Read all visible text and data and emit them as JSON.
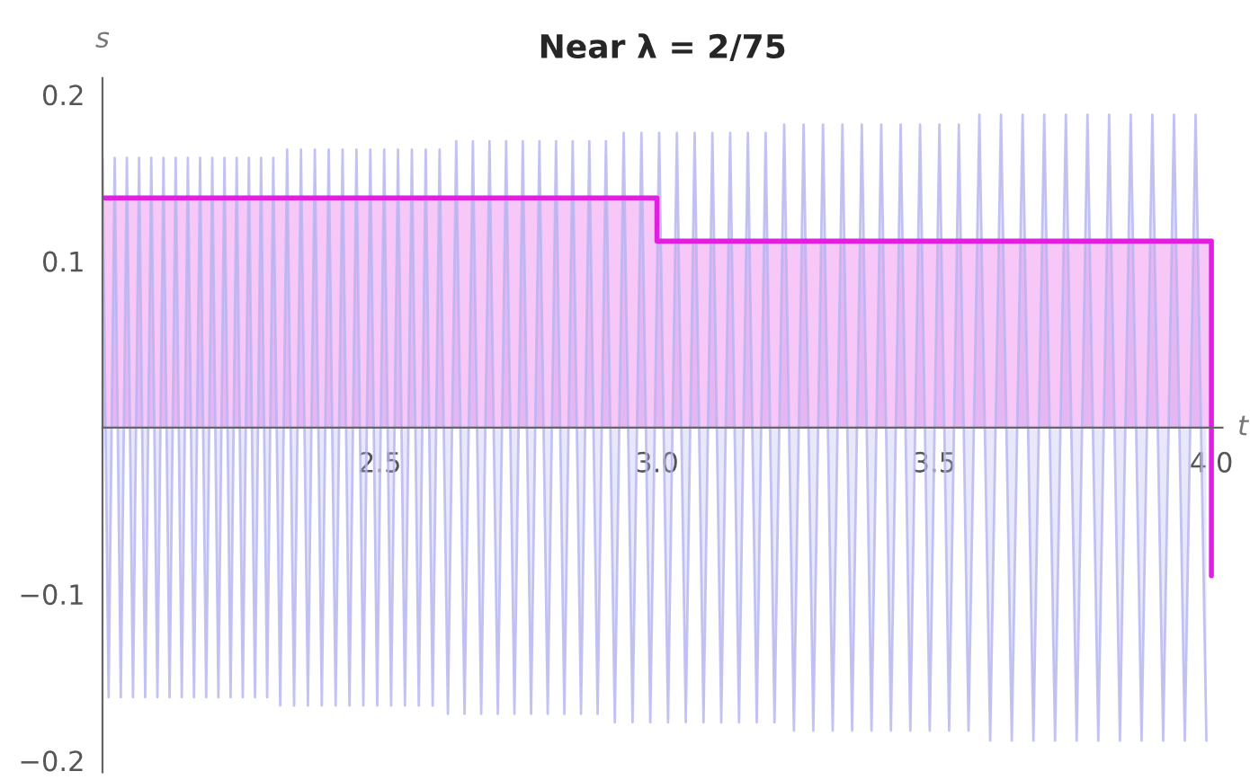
{
  "chart_data": {
    "type": "area",
    "title": "Near λ = 2/75",
    "xlabel": "t",
    "ylabel": "s",
    "xlim": [
      2.0,
      4.02
    ],
    "ylim": [
      -0.207,
      0.21
    ],
    "xticks": [
      2.5,
      {
        "value": 3,
        "label": "3.0"
      },
      3.5,
      {
        "value": 4,
        "label": "4.0"
      }
    ],
    "yticks": [
      {
        "value": -0.2,
        "label": "−0.2"
      },
      {
        "value": -0.1,
        "label": "−0.1"
      },
      0.1,
      0.2
    ],
    "grid": false,
    "series": [
      {
        "color": "#b4b4f0",
        "x": [
          2.0,
          2.011,
          2.022,
          2.033,
          2.044,
          2.055,
          2.066,
          2.077,
          2.088,
          2.099,
          2.11,
          2.121,
          2.132,
          2.143,
          2.154,
          2.165,
          2.176,
          2.187,
          2.198,
          2.209,
          2.22,
          2.231,
          2.242,
          2.253,
          2.264,
          2.275,
          2.286,
          2.297,
          2.308,
          2.3205,
          2.333,
          2.3455,
          2.358,
          2.3705,
          2.383,
          2.3955,
          2.408,
          2.4205,
          2.433,
          2.4455,
          2.458,
          2.4705,
          2.483,
          2.4955,
          2.508,
          2.5205,
          2.533,
          2.5455,
          2.558,
          2.5705,
          2.583,
          2.5955,
          2.608,
          2.623,
          2.638,
          2.653,
          2.668,
          2.683,
          2.698,
          2.713,
          2.728,
          2.743,
          2.758,
          2.773,
          2.788,
          2.803,
          2.818,
          2.833,
          2.848,
          2.863,
          2.878,
          2.893,
          2.908,
          2.924,
          2.94,
          2.956,
          2.972,
          2.988,
          3.004,
          3.02,
          3.036,
          3.052,
          3.068,
          3.084,
          3.1,
          3.116,
          3.132,
          3.148,
          3.164,
          3.18,
          3.196,
          3.212,
          3.2295,
          3.247,
          3.2645,
          3.282,
          3.2995,
          3.317,
          3.3345,
          3.352,
          3.3695,
          3.387,
          3.4045,
          3.422,
          3.4395,
          3.457,
          3.4745,
          3.492,
          3.5095,
          3.527,
          3.5445,
          3.562,
          3.5815,
          3.601,
          3.6205,
          3.64,
          3.6595,
          3.679,
          3.6985,
          3.718,
          3.7375,
          3.757,
          3.7765,
          3.796,
          3.8155,
          3.835,
          3.8545,
          3.874,
          3.8935,
          3.913,
          3.9325,
          3.952,
          3.9715,
          3.991
        ],
        "values": [
          0.162,
          -0.162,
          0.162,
          -0.162,
          0.162,
          -0.162,
          0.162,
          -0.162,
          0.162,
          -0.162,
          0.162,
          -0.162,
          0.162,
          -0.162,
          0.162,
          -0.162,
          0.162,
          -0.162,
          0.162,
          -0.162,
          0.162,
          -0.162,
          0.162,
          -0.162,
          0.162,
          -0.162,
          0.162,
          -0.162,
          0.162,
          -0.167,
          0.167,
          -0.167,
          0.167,
          -0.167,
          0.167,
          -0.167,
          0.167,
          -0.167,
          0.167,
          -0.167,
          0.167,
          -0.167,
          0.167,
          -0.167,
          0.167,
          -0.167,
          0.167,
          -0.167,
          0.167,
          -0.167,
          0.167,
          -0.167,
          0.167,
          -0.172,
          0.172,
          -0.172,
          0.172,
          -0.172,
          0.172,
          -0.172,
          0.172,
          -0.172,
          0.172,
          -0.172,
          0.172,
          -0.172,
          0.172,
          -0.172,
          0.172,
          -0.172,
          0.172,
          -0.172,
          0.172,
          -0.177,
          0.177,
          -0.177,
          0.177,
          -0.177,
          0.177,
          -0.177,
          0.177,
          -0.177,
          0.177,
          -0.177,
          0.177,
          -0.177,
          0.177,
          -0.177,
          0.177,
          -0.177,
          0.177,
          -0.177,
          0.182,
          -0.182,
          0.182,
          -0.182,
          0.182,
          -0.182,
          0.182,
          -0.182,
          0.182,
          -0.182,
          0.182,
          -0.182,
          0.182,
          -0.182,
          0.182,
          -0.182,
          0.182,
          -0.182,
          0.182,
          -0.182,
          0.188,
          -0.188,
          0.188,
          -0.188,
          0.188,
          -0.188,
          0.188,
          -0.188,
          0.188,
          -0.188,
          0.188,
          -0.188,
          0.188,
          -0.188,
          0.188,
          -0.188,
          0.188,
          -0.188,
          0.188,
          -0.188,
          0.188,
          -0.188
        ]
      },
      {
        "type": "step",
        "color": "#e020e0",
        "x": [
          2.0,
          3.0,
          4.0
        ],
        "values": [
          0.138,
          0.112,
          -0.089
        ]
      }
    ]
  }
}
